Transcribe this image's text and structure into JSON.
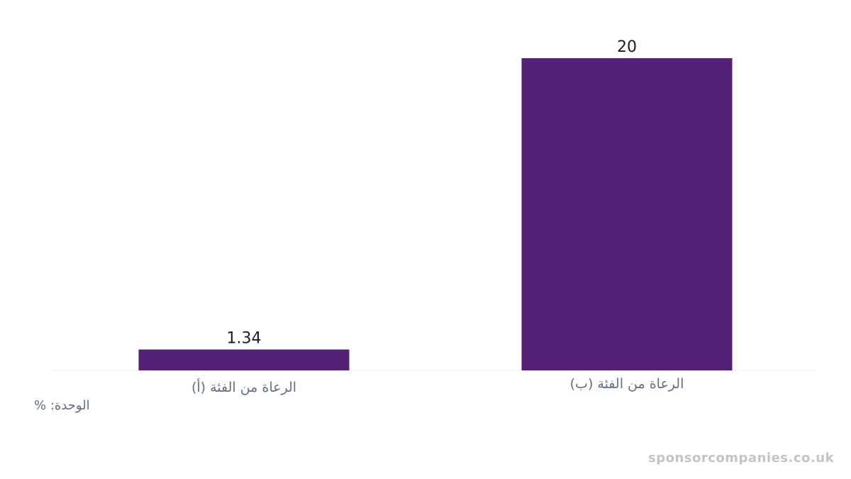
{
  "chart_data": {
    "type": "bar",
    "categories": [
      "الرعاة من الفئة (أ)",
      "الرعاة من الفئة (ب)"
    ],
    "values": [
      1.34,
      20
    ],
    "value_labels": [
      "1.34",
      "20"
    ],
    "ylim": [
      0,
      20
    ],
    "grid": false,
    "unit_label": "الوحدة: %",
    "colors": {
      "bar": "#532277",
      "value_text": "#1a1a2e",
      "category_text": "#5f6f86",
      "baseline": "#eeeeee"
    }
  },
  "watermark": "sponsorcompanies.co.uk"
}
